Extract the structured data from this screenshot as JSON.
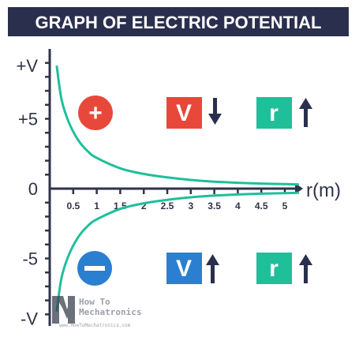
{
  "title": "GRAPH OF ELECTRIC POTENTIAL",
  "chart_data": {
    "type": "line",
    "title": "GRAPH OF ELECTRIC POTENTIAL",
    "xlabel": "r(m)",
    "ylabel": "",
    "x_ticks": [
      "0.5",
      "1",
      "1.5",
      "2",
      "2.5",
      "3",
      "3.5",
      "4",
      "4.5",
      "5"
    ],
    "y_tick_labels": [
      "+V",
      "+5",
      "0",
      "-5",
      "-V"
    ],
    "xlim": [
      0,
      5.3
    ],
    "ylim": [
      -8.5,
      8.5
    ],
    "grid": false,
    "series": [
      {
        "name": "",
        "x": [
          0.15,
          0.25,
          0.4,
          0.6,
          0.8,
          1.0,
          1.5,
          2.0,
          2.5,
          3.0,
          3.5,
          4.0,
          4.5,
          5.0,
          5.3
        ],
        "y": [
          8.8,
          6.4,
          4.8,
          3.5,
          2.7,
          2.2,
          1.45,
          1.05,
          0.8,
          0.62,
          0.5,
          0.42,
          0.36,
          0.32,
          0.3
        ]
      },
      {
        "name": "",
        "x": [
          0.15,
          0.25,
          0.4,
          0.6,
          0.8,
          1.0,
          1.5,
          2.0,
          2.5,
          3.0,
          3.5,
          4.0,
          4.5,
          5.0,
          5.3
        ],
        "y": [
          -8.8,
          -6.4,
          -4.8,
          -3.5,
          -2.7,
          -2.2,
          -1.45,
          -1.05,
          -0.8,
          -0.62,
          -0.5,
          -0.42,
          -0.36,
          -0.32,
          -0.3
        ]
      }
    ],
    "colors": {
      "curve": "#1fbf9a",
      "axis": "#2f3348"
    }
  },
  "legend": {
    "positive_charge": {
      "symbol": "+",
      "color": "#e8483a"
    },
    "negative_charge": {
      "symbol": "−",
      "color": "#2b7fd0"
    },
    "positive_row": {
      "v_label": "V",
      "v_color": "#e8483a",
      "v_arrow": "down",
      "r_label": "r",
      "r_color": "#1fbf9a",
      "r_arrow": "up"
    },
    "negative_row": {
      "v_label": "V",
      "v_color": "#2b7fd0",
      "v_arrow": "up",
      "r_label": "r",
      "r_color": "#1fbf9a",
      "r_arrow": "up"
    }
  },
  "watermark": {
    "line1": "How To",
    "line2": "Mechatronics",
    "url": "www.HowToMechatronics.com"
  }
}
